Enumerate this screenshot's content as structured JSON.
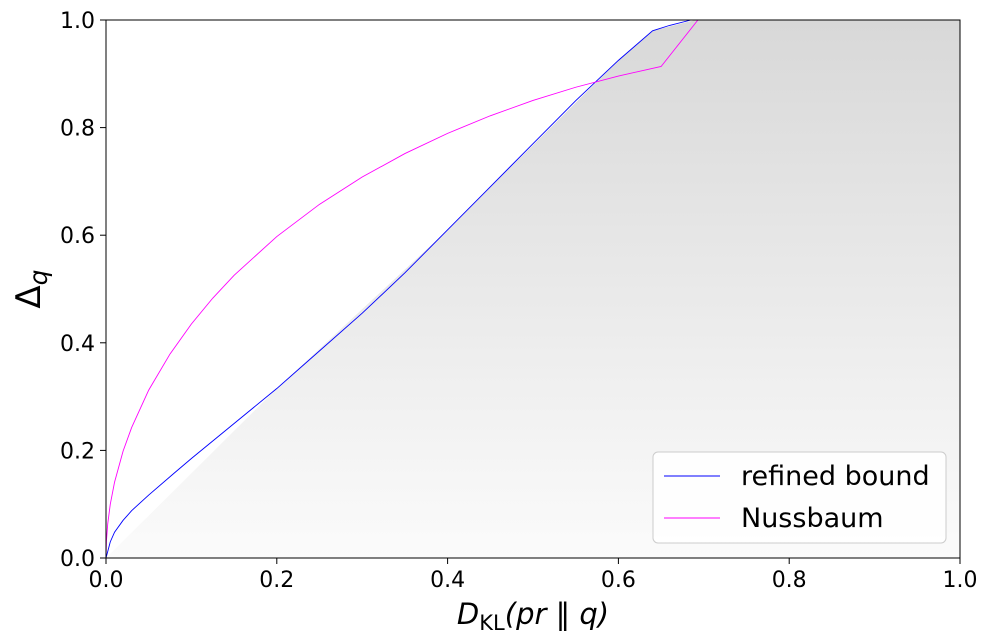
{
  "chart_data": {
    "type": "line",
    "xlabel": {
      "base": "D",
      "sub": "KL",
      "arg": "(pr ‖ q)"
    },
    "ylabel": {
      "base": "Δ",
      "sub": "q"
    },
    "xlim": [
      0.0,
      1.0
    ],
    "ylim": [
      0.0,
      1.0
    ],
    "xticks": [
      "0.0",
      "0.2",
      "0.4",
      "0.6",
      "0.8",
      "1.0"
    ],
    "yticks": [
      "0.0",
      "0.2",
      "0.4",
      "0.6",
      "0.8",
      "1.0"
    ],
    "grid": false,
    "legend_position": "bottom-right",
    "series": [
      {
        "name": "refined bound",
        "color": "#0000ff",
        "x": [
          0.0,
          0.005,
          0.01,
          0.02,
          0.03,
          0.05,
          0.08,
          0.1,
          0.15,
          0.2,
          0.25,
          0.3,
          0.35,
          0.4,
          0.45,
          0.5,
          0.55,
          0.6,
          0.64,
          0.66,
          0.685
        ],
        "y": [
          0.0,
          0.03,
          0.048,
          0.07,
          0.088,
          0.117,
          0.158,
          0.185,
          0.25,
          0.315,
          0.385,
          0.455,
          0.53,
          0.61,
          0.69,
          0.77,
          0.85,
          0.925,
          0.98,
          0.99,
          1.0
        ]
      },
      {
        "name": "Nussbaum",
        "color": "#ff00ff",
        "x": [
          0.0,
          0.0005,
          0.002,
          0.005,
          0.01,
          0.02,
          0.03,
          0.05,
          0.075,
          0.1,
          0.125,
          0.15,
          0.2,
          0.25,
          0.3,
          0.35,
          0.4,
          0.45,
          0.5,
          0.55,
          0.6,
          0.65,
          0.6931
        ],
        "y": [
          0.0,
          0.0316,
          0.0632,
          0.0998,
          0.1409,
          0.1987,
          0.2425,
          0.3121,
          0.3793,
          0.4349,
          0.483,
          0.5255,
          0.5975,
          0.6574,
          0.7081,
          0.7517,
          0.7893,
          0.822,
          0.8504,
          0.875,
          0.8959,
          0.9136,
          1.0
        ]
      }
    ],
    "shaded_region": {
      "description": "achievable region",
      "boundary_x": [
        0.0,
        0.2,
        0.4,
        0.6,
        0.64,
        0.69,
        1.0
      ],
      "boundary_y": [
        0.0,
        0.315,
        0.61,
        0.925,
        0.98,
        1.0,
        1.0
      ],
      "color_top": "#d8d8d8",
      "color_bottom": "#fbfbfb"
    }
  }
}
